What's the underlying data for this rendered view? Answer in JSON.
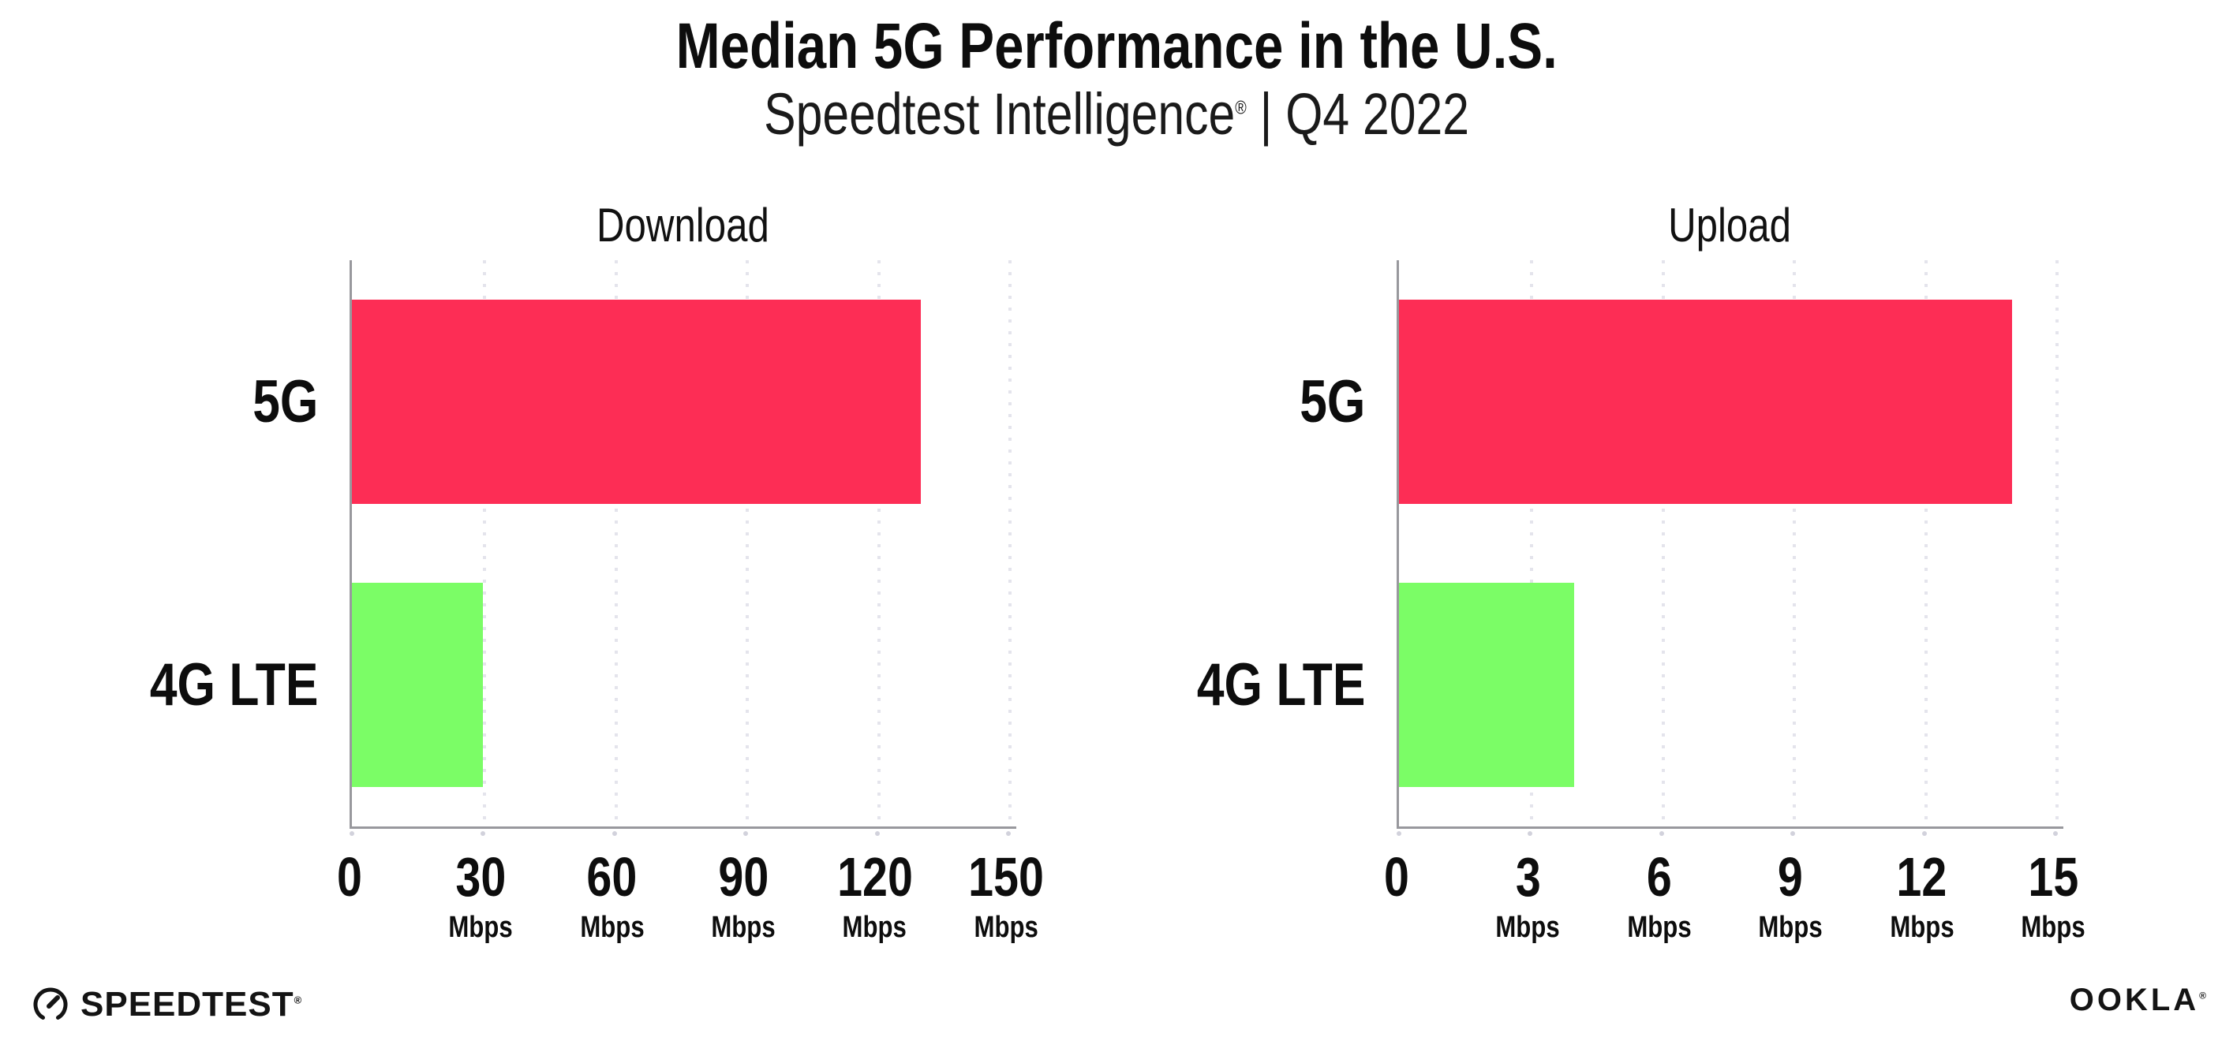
{
  "header": {
    "title": "Median 5G Performance in the U.S.",
    "subtitle_brand": "Speedtest Intelligence",
    "subtitle_reg": "®",
    "subtitle_rest": " | Q4 2022"
  },
  "chart_data": [
    {
      "type": "bar",
      "orientation": "horizontal",
      "title": "Download",
      "categories": [
        "5G",
        "4G LTE"
      ],
      "values": [
        130,
        30
      ],
      "value_unit": "Mbps",
      "xlim": [
        0,
        150
      ],
      "xticks": [
        0,
        30,
        60,
        90,
        120,
        150
      ],
      "xtick_unit_label": "Mbps",
      "bar_colors": [
        "#FD2D55",
        "#7BFD66"
      ],
      "grid": "vertical dotted",
      "legend": "none"
    },
    {
      "type": "bar",
      "orientation": "horizontal",
      "title": "Upload",
      "categories": [
        "5G",
        "4G LTE"
      ],
      "values": [
        14,
        4
      ],
      "value_unit": "Mbps",
      "xlim": [
        0,
        15
      ],
      "xticks": [
        0,
        3,
        6,
        9,
        12,
        15
      ],
      "xtick_unit_label": "Mbps",
      "bar_colors": [
        "#FD2D55",
        "#7BFD66"
      ],
      "grid": "vertical dotted",
      "legend": "none"
    }
  ],
  "footer": {
    "speedtest_label": "SPEEDTEST",
    "speedtest_reg": "®",
    "ookla_label": "OOKLA",
    "ookla_reg": "®"
  },
  "colors": {
    "bar_5g": "#FD2D55",
    "bar_4g_lte": "#7BFD66",
    "axis_line": "#98989D",
    "gridline": "#E4E4EC",
    "text": "#0D0D0D",
    "background": "#FFFFFF"
  }
}
